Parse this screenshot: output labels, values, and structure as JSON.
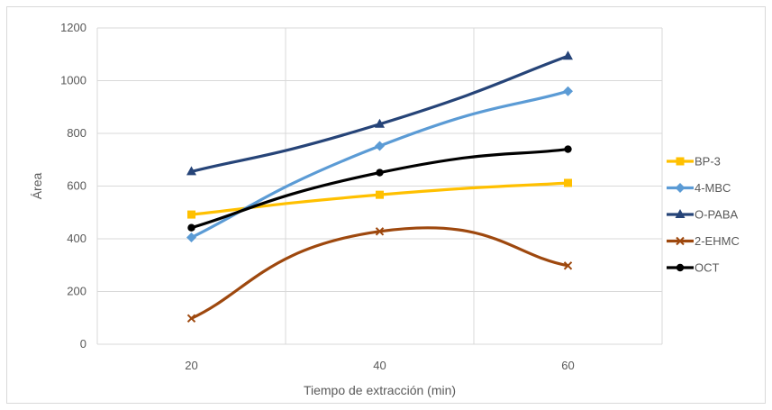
{
  "chart_data": {
    "type": "line",
    "title": "",
    "xlabel": "Tiempo de extracción (min)",
    "ylabel": "Área",
    "x": [
      20,
      40,
      60
    ],
    "x_tick_labels": [
      "20",
      "40",
      "60"
    ],
    "ylim": [
      0,
      1200
    ],
    "y_ticks": [
      0,
      200,
      400,
      600,
      800,
      1000,
      1200
    ],
    "y_tick_labels": [
      "0",
      "200",
      "400",
      "600",
      "800",
      "1000",
      "1200"
    ],
    "grid": true,
    "smoothed": true,
    "legend_position": "right",
    "series": [
      {
        "name": "BP-3",
        "values": [
          492,
          567,
          612
        ],
        "color": "#ffc000",
        "marker": "square"
      },
      {
        "name": "4-MBC",
        "values": [
          405,
          752,
          960
        ],
        "color": "#5b9bd5",
        "marker": "diamond"
      },
      {
        "name": "O-PABA",
        "values": [
          655,
          835,
          1093
        ],
        "color": "#264478",
        "marker": "triangle"
      },
      {
        "name": "2-EHMC",
        "values": [
          98,
          428,
          298
        ],
        "color": "#9e480e",
        "marker": "x"
      },
      {
        "name": "OCT",
        "values": [
          442,
          651,
          740
        ],
        "color": "#000000",
        "marker": "circle"
      }
    ]
  }
}
